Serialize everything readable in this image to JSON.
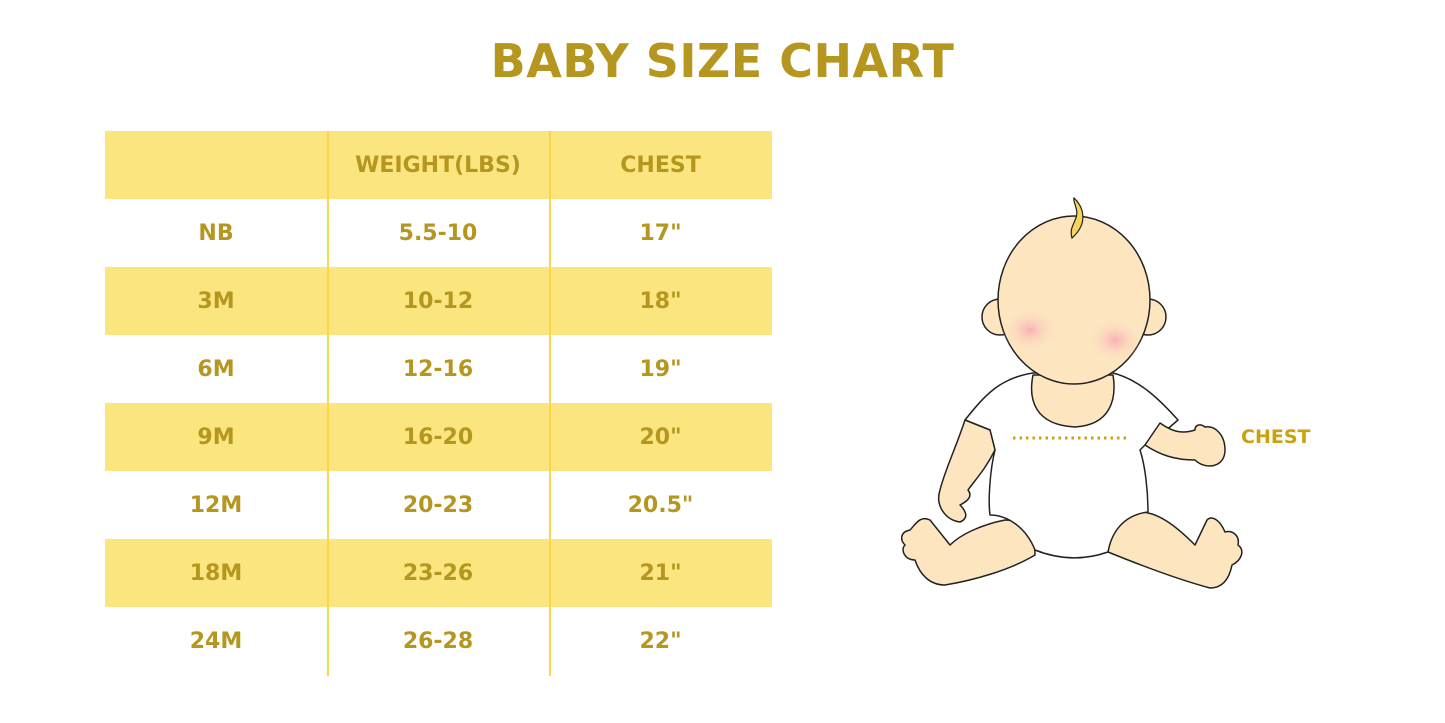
{
  "title": "BABY SIZE CHART",
  "colors": {
    "accent_text": "#B5961F",
    "row_fill": "#FAE57E",
    "divider": "#F7D84A",
    "skin": "#FDE5C0",
    "cheek": "#F9B8BC",
    "hair": "#F5D55A"
  },
  "table": {
    "headers": [
      "",
      "WEIGHT(LBS)",
      "CHEST"
    ],
    "rows": [
      [
        "NB",
        "5.5-10",
        "17\""
      ],
      [
        "3M",
        "10-12",
        "18\""
      ],
      [
        "6M",
        "12-16",
        "19\""
      ],
      [
        "9M",
        "16-20",
        "20\""
      ],
      [
        "12M",
        "20-23",
        "20.5\""
      ],
      [
        "18M",
        "23-26",
        "21\""
      ],
      [
        "24M",
        "26-28",
        "22\""
      ]
    ]
  },
  "illustration": {
    "icon": "baby-sitting-illustration",
    "measure_label": "CHEST"
  }
}
